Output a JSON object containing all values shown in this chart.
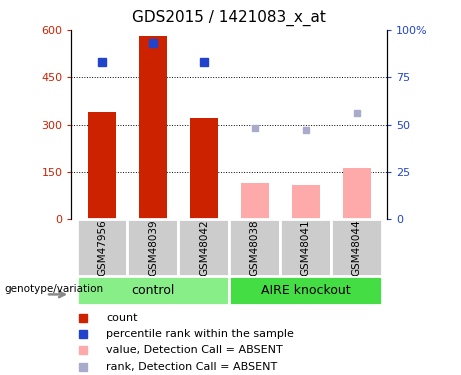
{
  "title": "GDS2015 / 1421083_x_at",
  "samples": [
    "GSM47956",
    "GSM48039",
    "GSM48042",
    "GSM48038",
    "GSM48041",
    "GSM48044"
  ],
  "count_values": [
    340,
    580,
    320,
    null,
    null,
    null
  ],
  "count_absent_values": [
    null,
    null,
    null,
    115,
    108,
    163
  ],
  "rank_values": [
    83,
    93,
    83,
    null,
    null,
    null
  ],
  "rank_absent_values": [
    null,
    null,
    null,
    48,
    47,
    56
  ],
  "ylim_left": [
    0,
    600
  ],
  "ylim_right": [
    0,
    100
  ],
  "yticks_left": [
    0,
    150,
    300,
    450,
    600
  ],
  "ytick_labels_left": [
    "0",
    "150",
    "300",
    "450",
    "600"
  ],
  "yticks_right": [
    0,
    25,
    50,
    75,
    100
  ],
  "ytick_labels_right": [
    "0",
    "25",
    "50",
    "75",
    "100%"
  ],
  "color_count": "#cc2200",
  "color_rank": "#2244cc",
  "color_count_absent": "#ffaaaa",
  "color_rank_absent": "#aaaacc",
  "group_control_color": "#88ee88",
  "group_knockout_color": "#44dd44",
  "tick_bg_color": "#cccccc",
  "legend_items": [
    {
      "label": "count",
      "color": "#cc2200"
    },
    {
      "label": "percentile rank within the sample",
      "color": "#2244cc"
    },
    {
      "label": "value, Detection Call = ABSENT",
      "color": "#ffaaaa"
    },
    {
      "label": "rank, Detection Call = ABSENT",
      "color": "#aaaacc"
    }
  ]
}
